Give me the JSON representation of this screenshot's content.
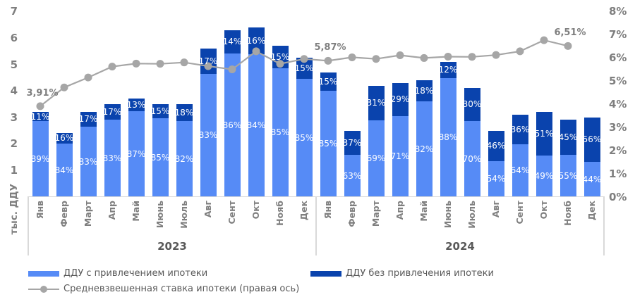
{
  "chart_data": {
    "type": "bar",
    "subtype": "stacked-bars-with-line-on-secondary-axis",
    "year_groups": [
      {
        "year": "2023",
        "months": [
          "Янв",
          "Февр",
          "Март",
          "Апр",
          "Май",
          "Июнь",
          "Июль",
          "Авг",
          "Сент",
          "Окт",
          "Нояб",
          "Дек"
        ]
      },
      {
        "year": "2024",
        "months": [
          "Янв",
          "Февр",
          "Март",
          "Апр",
          "Май",
          "Июнь",
          "Июль",
          "Авг",
          "Сент",
          "Окт",
          "Нояб",
          "Дек"
        ]
      }
    ],
    "bar_totals_thousand_ddu": [
      3.2,
      2.4,
      3.2,
      3.5,
      3.7,
      3.5,
      3.5,
      5.6,
      6.3,
      6.4,
      5.7,
      5.25,
      4.7,
      2.5,
      4.2,
      4.3,
      4.4,
      5.1,
      4.1,
      2.5,
      3.1,
      3.2,
      2.9,
      3.0
    ],
    "series": [
      {
        "name": "ДДУ с привлечением ипотеки",
        "role": "stack-bottom",
        "color": "#568bf6",
        "share_pct": [
          89,
          84,
          83,
          83,
          87,
          85,
          82,
          83,
          86,
          84,
          85,
          85,
          85,
          63,
          69,
          71,
          82,
          88,
          70,
          54,
          64,
          49,
          55,
          44
        ]
      },
      {
        "name": "ДДУ без привлечения ипотеки",
        "role": "stack-top",
        "color": "#0a43ad",
        "share_pct": [
          11,
          16,
          17,
          17,
          13,
          15,
          18,
          17,
          14,
          16,
          15,
          15,
          15,
          37,
          31,
          29,
          18,
          12,
          30,
          46,
          36,
          51,
          45,
          56
        ]
      },
      {
        "name": "Средневзвешенная ставка ипотеки (правая ось)",
        "role": "line-right-axis",
        "color": "#a6a6a6",
        "rate_pct": [
          3.91,
          4.72,
          5.15,
          5.62,
          5.75,
          5.74,
          5.8,
          5.64,
          5.5,
          6.28,
          5.74,
          5.95,
          5.87,
          6.02,
          5.95,
          6.11,
          5.99,
          6.05,
          6.04,
          6.12,
          6.28,
          6.76,
          6.51,
          null
        ]
      }
    ],
    "line_point_labels": [
      {
        "index": 0,
        "text": "3,91%"
      },
      {
        "index": 12,
        "text": "5,87%"
      },
      {
        "index": 22,
        "text": "6,51%"
      }
    ],
    "left_axis": {
      "title": "тыс. ДДУ",
      "ticks": [
        "1",
        "2",
        "3",
        "4",
        "5",
        "6",
        "7"
      ],
      "min": 0,
      "max": 7
    },
    "right_axis": {
      "ticks": [
        "0%",
        "1%",
        "2%",
        "3%",
        "4%",
        "5%",
        "6%",
        "7%",
        "8%"
      ],
      "min": 0,
      "max": 8
    },
    "grid": "off",
    "legend_position": "bottom-left"
  },
  "legend": {
    "item_mortgage": "ДДУ с привлечением ипотеки",
    "item_no_mortgage": "ДДУ без привлечения ипотеки",
    "item_rate": "Средневзвешенная ставка ипотеки (правая ось)"
  },
  "unit_label": "тыс. ДДУ"
}
